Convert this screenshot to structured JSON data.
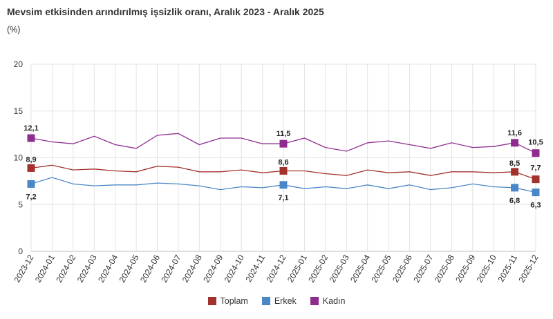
{
  "chart_data": {
    "type": "line",
    "title": "Mevsim etkisinden arındırılmış işsizlik oranı, Aralık 2023 - Aralık 2025",
    "ylabel": "(%)",
    "xlabel": "",
    "ylim": [
      0,
      20
    ],
    "yticks": [
      "0",
      "5",
      "10",
      "15",
      "20"
    ],
    "grid": true,
    "legend_position": "bottom",
    "categories": [
      "2023-12",
      "2024-01",
      "2024-02",
      "2024-03",
      "2024-04",
      "2024-05",
      "2024-06",
      "2024-07",
      "2024-08",
      "2024-09",
      "2024-10",
      "2024-11",
      "2024-12",
      "2025-01",
      "2025-02",
      "2025-03",
      "2025-04",
      "2025-05",
      "2025-06",
      "2025-07",
      "2025-08",
      "2025-09",
      "2025-10",
      "2025-11",
      "2025-12"
    ],
    "series": [
      {
        "name": "Toplam",
        "color": "#a3312c",
        "values": [
          8.9,
          9.2,
          8.7,
          8.8,
          8.6,
          8.5,
          9.1,
          9.0,
          8.5,
          8.5,
          8.7,
          8.4,
          8.6,
          8.6,
          8.3,
          8.1,
          8.7,
          8.4,
          8.5,
          8.1,
          8.5,
          8.5,
          8.4,
          8.5,
          7.7
        ],
        "labels": [
          {
            "index": 0,
            "text": "8,9"
          },
          {
            "index": 12,
            "text": "8,6"
          },
          {
            "index": 23,
            "text": "8,5"
          },
          {
            "index": 24,
            "text": "7,7"
          }
        ]
      },
      {
        "name": "Erkek",
        "color": "#4a87c6",
        "values": [
          7.2,
          7.9,
          7.2,
          7.0,
          7.1,
          7.1,
          7.3,
          7.2,
          7.0,
          6.6,
          6.9,
          6.8,
          7.1,
          6.7,
          6.9,
          6.7,
          7.1,
          6.7,
          7.1,
          6.6,
          6.8,
          7.2,
          6.9,
          6.8,
          6.3
        ],
        "labels": [
          {
            "index": 0,
            "text": "7,2"
          },
          {
            "index": 12,
            "text": "7,1"
          },
          {
            "index": 23,
            "text": "6,8"
          },
          {
            "index": 24,
            "text": "6,3"
          }
        ]
      },
      {
        "name": "Kadın",
        "color": "#8f2d8f",
        "values": [
          12.1,
          11.7,
          11.5,
          12.3,
          11.4,
          11.0,
          12.4,
          12.6,
          11.4,
          12.1,
          12.1,
          11.5,
          11.5,
          12.1,
          11.1,
          10.7,
          11.6,
          11.8,
          11.4,
          11.0,
          11.6,
          11.1,
          11.2,
          11.6,
          10.5
        ],
        "labels": [
          {
            "index": 0,
            "text": "12,1"
          },
          {
            "index": 12,
            "text": "11,5"
          },
          {
            "index": 23,
            "text": "11,6"
          },
          {
            "index": 24,
            "text": "10,5"
          }
        ]
      }
    ],
    "markers_at": [
      0,
      12,
      23,
      24
    ]
  }
}
